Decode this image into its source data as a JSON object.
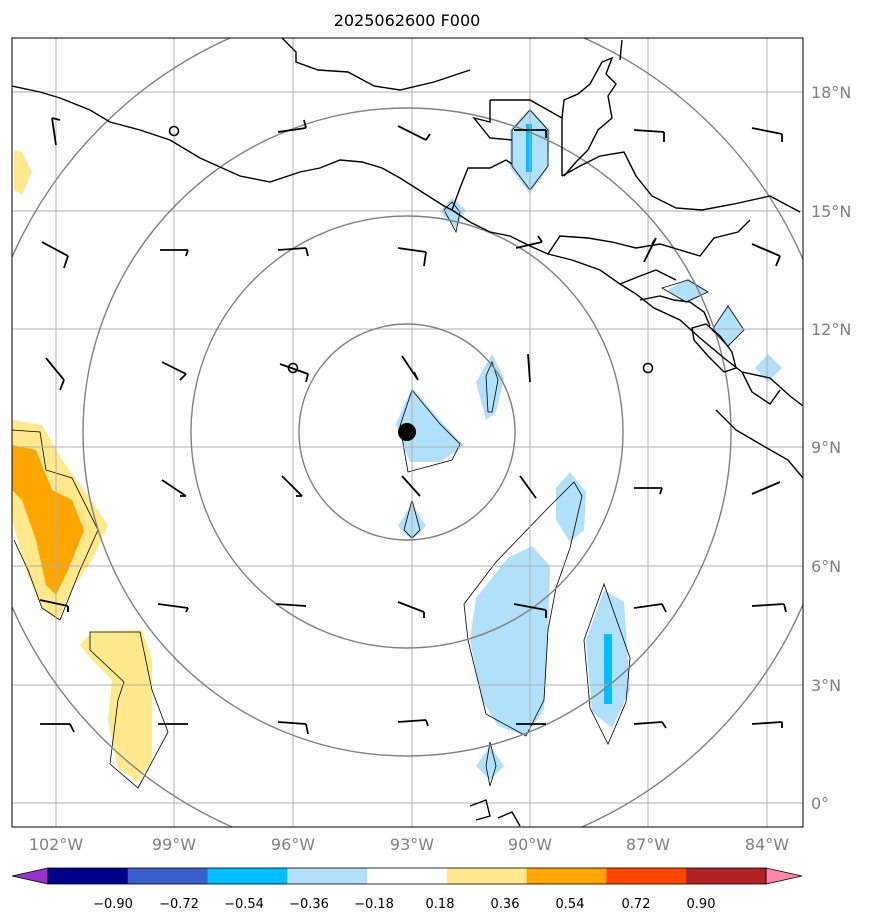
{
  "title": "2025062600 F000",
  "lat_labels": [
    "18°N",
    "15°N",
    "12°N",
    "9°N",
    "6°N",
    "3°N",
    "0°"
  ],
  "lon_labels": [
    "102°W",
    "99°W",
    "96°W",
    "93°W",
    "90°W",
    "87°W",
    "84°W"
  ],
  "colorbar": {
    "ticks": [
      "−0.90",
      "−0.72",
      "−0.54",
      "−0.36",
      "−0.18",
      "0.18",
      "0.36",
      "0.54",
      "0.72",
      "0.90"
    ],
    "colors": [
      "#9932cc",
      "#00008b",
      "#3a5fcd",
      "#00bfff",
      "#b0e0fa",
      "#ffffff",
      "#ffe98c",
      "#ffa500",
      "#ff4500",
      "#b22222",
      "#ff88aa"
    ]
  },
  "center_marker": "storm-center-dot"
}
